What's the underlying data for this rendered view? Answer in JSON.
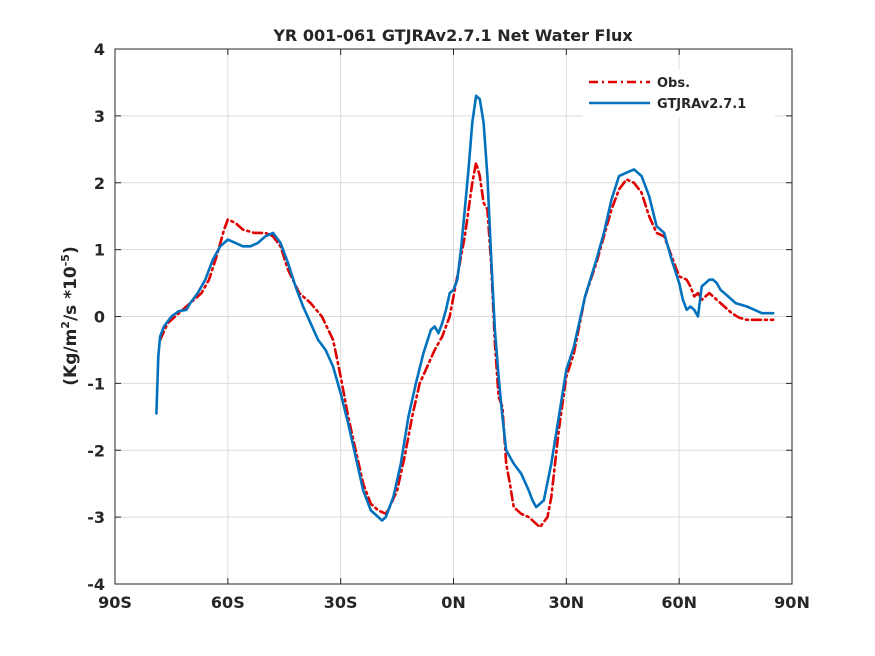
{
  "chart_data": {
    "type": "line",
    "title": "YR 001-061 GTJRAv2.7.1  Net Water Flux",
    "xlabel": "",
    "ylabel": "(Kg/m²/s *10⁻⁵)",
    "xlim": [
      -90,
      90
    ],
    "ylim": [
      -4,
      4
    ],
    "x_ticks": [
      -90,
      -60,
      -30,
      0,
      30,
      60,
      90
    ],
    "x_tick_labels": [
      "90S",
      "60S",
      "30S",
      "0N",
      "30N",
      "60N",
      "90N"
    ],
    "y_ticks": [
      -4,
      -3,
      -2,
      -1,
      0,
      1,
      2,
      3,
      4
    ],
    "y_tick_labels": [
      "-4",
      "-3",
      "-2",
      "-1",
      "0",
      "1",
      "2",
      "3",
      "4"
    ],
    "grid": true,
    "legend_position": "top-right",
    "series": [
      {
        "name": "Obs.",
        "color": "#e00000",
        "style": "dash-dot",
        "points": [
          [
            -78,
            -0.35
          ],
          [
            -76,
            -0.1
          ],
          [
            -73,
            0.05
          ],
          [
            -70,
            0.2
          ],
          [
            -67,
            0.35
          ],
          [
            -65,
            0.55
          ],
          [
            -63,
            0.9
          ],
          [
            -61,
            1.3
          ],
          [
            -60,
            1.45
          ],
          [
            -58,
            1.4
          ],
          [
            -56,
            1.3
          ],
          [
            -53,
            1.25
          ],
          [
            -50,
            1.25
          ],
          [
            -48,
            1.2
          ],
          [
            -46,
            1.05
          ],
          [
            -44,
            0.7
          ],
          [
            -41,
            0.35
          ],
          [
            -38,
            0.2
          ],
          [
            -35,
            0.0
          ],
          [
            -32,
            -0.35
          ],
          [
            -30,
            -0.9
          ],
          [
            -28,
            -1.5
          ],
          [
            -26,
            -2.0
          ],
          [
            -24,
            -2.5
          ],
          [
            -22,
            -2.8
          ],
          [
            -20,
            -2.9
          ],
          [
            -18,
            -2.95
          ],
          [
            -17,
            -2.85
          ],
          [
            -15,
            -2.6
          ],
          [
            -13,
            -2.1
          ],
          [
            -11,
            -1.5
          ],
          [
            -9,
            -1.0
          ],
          [
            -7,
            -0.75
          ],
          [
            -5,
            -0.5
          ],
          [
            -3,
            -0.3
          ],
          [
            -1,
            0.0
          ],
          [
            1,
            0.6
          ],
          [
            3,
            1.2
          ],
          [
            5,
            2.0
          ],
          [
            6,
            2.3
          ],
          [
            7,
            2.1
          ],
          [
            8,
            1.7
          ],
          [
            9,
            1.6
          ],
          [
            10,
            0.8
          ],
          [
            11,
            -0.4
          ],
          [
            12,
            -1.2
          ],
          [
            13,
            -1.35
          ],
          [
            14,
            -2.2
          ],
          [
            15,
            -2.5
          ],
          [
            16,
            -2.85
          ],
          [
            18,
            -2.95
          ],
          [
            20,
            -3.0
          ],
          [
            22,
            -3.1
          ],
          [
            23,
            -3.15
          ],
          [
            25,
            -3.0
          ],
          [
            26,
            -2.7
          ],
          [
            28,
            -1.7
          ],
          [
            30,
            -0.9
          ],
          [
            32,
            -0.55
          ],
          [
            35,
            0.3
          ],
          [
            38,
            0.8
          ],
          [
            40,
            1.2
          ],
          [
            42,
            1.6
          ],
          [
            44,
            1.9
          ],
          [
            46,
            2.05
          ],
          [
            48,
            2.0
          ],
          [
            50,
            1.85
          ],
          [
            52,
            1.5
          ],
          [
            54,
            1.25
          ],
          [
            56,
            1.2
          ],
          [
            58,
            0.9
          ],
          [
            60,
            0.6
          ],
          [
            62,
            0.55
          ],
          [
            63,
            0.45
          ],
          [
            64,
            0.3
          ],
          [
            65,
            0.35
          ],
          [
            66,
            0.25
          ],
          [
            67,
            0.3
          ],
          [
            68,
            0.35
          ],
          [
            70,
            0.25
          ],
          [
            72,
            0.15
          ],
          [
            74,
            0.05
          ],
          [
            76,
            -0.02
          ],
          [
            78,
            -0.05
          ],
          [
            80,
            -0.05
          ],
          [
            82,
            -0.05
          ],
          [
            85,
            -0.05
          ]
        ]
      },
      {
        "name": "GTJRAv2.7.1",
        "color": "#0072bd",
        "style": "solid",
        "points": [
          [
            -79,
            -1.45
          ],
          [
            -78.5,
            -0.6
          ],
          [
            -78,
            -0.3
          ],
          [
            -77,
            -0.15
          ],
          [
            -75,
            0.0
          ],
          [
            -73,
            0.08
          ],
          [
            -71,
            0.1
          ],
          [
            -70,
            0.2
          ],
          [
            -68,
            0.35
          ],
          [
            -66,
            0.55
          ],
          [
            -64,
            0.85
          ],
          [
            -62,
            1.05
          ],
          [
            -60,
            1.15
          ],
          [
            -58,
            1.1
          ],
          [
            -56,
            1.05
          ],
          [
            -54,
            1.05
          ],
          [
            -52,
            1.1
          ],
          [
            -50,
            1.2
          ],
          [
            -48,
            1.25
          ],
          [
            -46,
            1.1
          ],
          [
            -44,
            0.8
          ],
          [
            -42,
            0.45
          ],
          [
            -40,
            0.15
          ],
          [
            -38,
            -0.1
          ],
          [
            -36,
            -0.35
          ],
          [
            -34,
            -0.5
          ],
          [
            -32,
            -0.75
          ],
          [
            -30,
            -1.15
          ],
          [
            -28,
            -1.6
          ],
          [
            -26,
            -2.1
          ],
          [
            -24,
            -2.6
          ],
          [
            -22,
            -2.9
          ],
          [
            -20,
            -3.0
          ],
          [
            -19,
            -3.05
          ],
          [
            -18,
            -3.0
          ],
          [
            -16,
            -2.7
          ],
          [
            -14,
            -2.2
          ],
          [
            -12,
            -1.5
          ],
          [
            -10,
            -1.0
          ],
          [
            -8,
            -0.55
          ],
          [
            -6,
            -0.2
          ],
          [
            -5,
            -0.15
          ],
          [
            -4,
            -0.25
          ],
          [
            -3,
            -0.1
          ],
          [
            -2,
            0.1
          ],
          [
            -1,
            0.35
          ],
          [
            0,
            0.4
          ],
          [
            1,
            0.55
          ],
          [
            2,
            1.0
          ],
          [
            3,
            1.6
          ],
          [
            4,
            2.2
          ],
          [
            5,
            2.9
          ],
          [
            6,
            3.3
          ],
          [
            7,
            3.25
          ],
          [
            8,
            2.9
          ],
          [
            9,
            2.1
          ],
          [
            10,
            0.9
          ],
          [
            11,
            -0.2
          ],
          [
            12,
            -0.9
          ],
          [
            13,
            -1.5
          ],
          [
            14,
            -2.0
          ],
          [
            16,
            -2.2
          ],
          [
            18,
            -2.35
          ],
          [
            20,
            -2.6
          ],
          [
            21,
            -2.75
          ],
          [
            22,
            -2.85
          ],
          [
            24,
            -2.75
          ],
          [
            26,
            -2.2
          ],
          [
            28,
            -1.5
          ],
          [
            30,
            -0.8
          ],
          [
            32,
            -0.45
          ],
          [
            35,
            0.3
          ],
          [
            38,
            0.85
          ],
          [
            40,
            1.25
          ],
          [
            42,
            1.75
          ],
          [
            44,
            2.1
          ],
          [
            46,
            2.15
          ],
          [
            48,
            2.2
          ],
          [
            50,
            2.1
          ],
          [
            52,
            1.8
          ],
          [
            54,
            1.35
          ],
          [
            56,
            1.25
          ],
          [
            58,
            0.85
          ],
          [
            60,
            0.5
          ],
          [
            61,
            0.25
          ],
          [
            62,
            0.1
          ],
          [
            63,
            0.15
          ],
          [
            64,
            0.1
          ],
          [
            65,
            0.0
          ],
          [
            66,
            0.45
          ],
          [
            67,
            0.5
          ],
          [
            68,
            0.55
          ],
          [
            69,
            0.55
          ],
          [
            70,
            0.5
          ],
          [
            71,
            0.4
          ],
          [
            73,
            0.3
          ],
          [
            75,
            0.2
          ],
          [
            78,
            0.15
          ],
          [
            80,
            0.1
          ],
          [
            82,
            0.05
          ],
          [
            85,
            0.05
          ]
        ]
      }
    ]
  }
}
